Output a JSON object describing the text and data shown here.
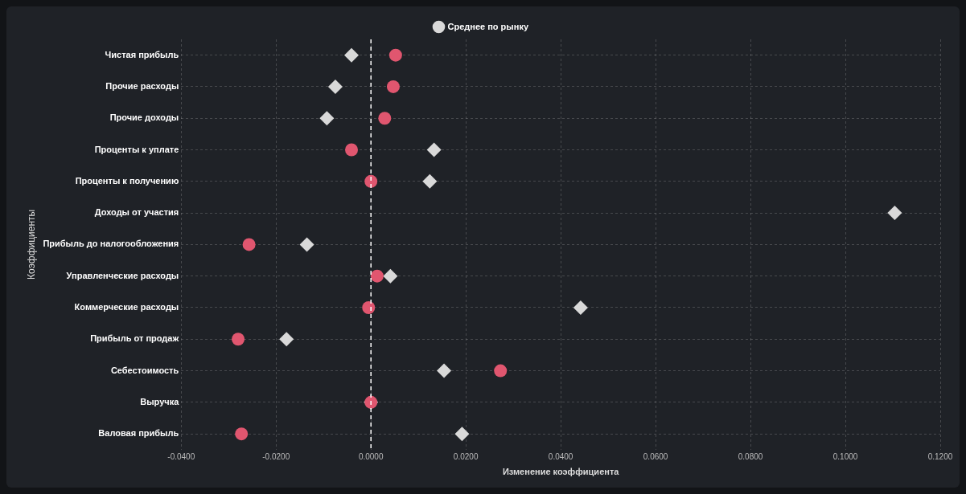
{
  "chart_data": {
    "type": "scatter",
    "xlabel": "Изменение коэффициента",
    "ylabel": "Коэффициенты",
    "categories": [
      "Чистая прибыль",
      "Прочие расходы",
      "Прочие доходы",
      "Проценты к уплате",
      "Проценты к получению",
      "Доходы от участия",
      "Прибыль до налогообложения",
      "Управленческие расходы",
      "Коммерческие расходы",
      "Прибыль от продаж",
      "Себестоимость",
      "Выручка",
      "Валовая прибыль"
    ],
    "orientation": "horizontal",
    "series": [
      {
        "color": "#e0566f",
        "marker": "circle",
        "values": [
          0.0052,
          0.0047,
          0.0029,
          -0.0041,
          0,
          null,
          -0.0257,
          0.0013,
          -0.0005,
          -0.028,
          0.0273,
          0,
          -0.0273
        ]
      },
      {
        "name": "Среднее по рынку",
        "color": "#d9d9d9",
        "marker": "diamond",
        "values": [
          -0.0041,
          -0.0075,
          -0.0093,
          0.0133,
          0.0124,
          0.1104,
          -0.0135,
          0.0041,
          0.0442,
          -0.0178,
          0.0154,
          0,
          0.0192
        ]
      }
    ],
    "xlim": [
      -0.04,
      0.12
    ],
    "xticks": [
      {
        "value": -0.04,
        "label": "-0.0400"
      },
      {
        "value": -0.02,
        "label": "-0.0200"
      },
      {
        "value": 0,
        "label": "0.0000"
      },
      {
        "value": 0.02,
        "label": "0.0200"
      },
      {
        "value": 0.04,
        "label": "0.0400"
      },
      {
        "value": 0.06,
        "label": "0.0600"
      },
      {
        "value": 0.08,
        "label": "0.0800"
      },
      {
        "value": 0.1,
        "label": "0.1000"
      },
      {
        "value": 0.12,
        "label": "0.1200"
      }
    ],
    "ref_lines": [
      {
        "axis": "x",
        "value": 0,
        "color": "#ffffff",
        "line_style": "dashed"
      }
    ],
    "grid": true,
    "legend": "top"
  }
}
